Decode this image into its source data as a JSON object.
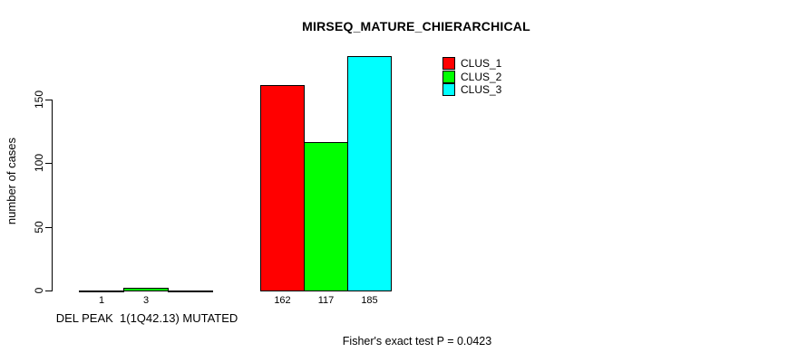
{
  "chart_data": {
    "type": "bar",
    "title": "MIRSEQ_MATURE_CHIERARCHICAL",
    "ylabel": "number of cases",
    "ylim": [
      0,
      150
    ],
    "yticks": [
      "0",
      "50",
      "100",
      "150"
    ],
    "grid": false,
    "legend_position": "top-right",
    "series": [
      {
        "name": "CLUS_1",
        "color": "#ff0000",
        "values": [
          1,
          162
        ]
      },
      {
        "name": "CLUS_2",
        "color": "#00ff00",
        "values": [
          3,
          117
        ]
      },
      {
        "name": "CLUS_3",
        "color": "#00ffff",
        "values": [
          0,
          185
        ]
      }
    ],
    "groups": [
      {
        "label": "DEL PEAK  1(1Q42.13) MUTATED",
        "bar_labels": [
          "1",
          "3",
          ""
        ]
      },
      {
        "label": "",
        "bar_labels": [
          "162",
          "117",
          "185"
        ]
      }
    ],
    "footnote": "Fisher's exact test P = 0.0423"
  }
}
